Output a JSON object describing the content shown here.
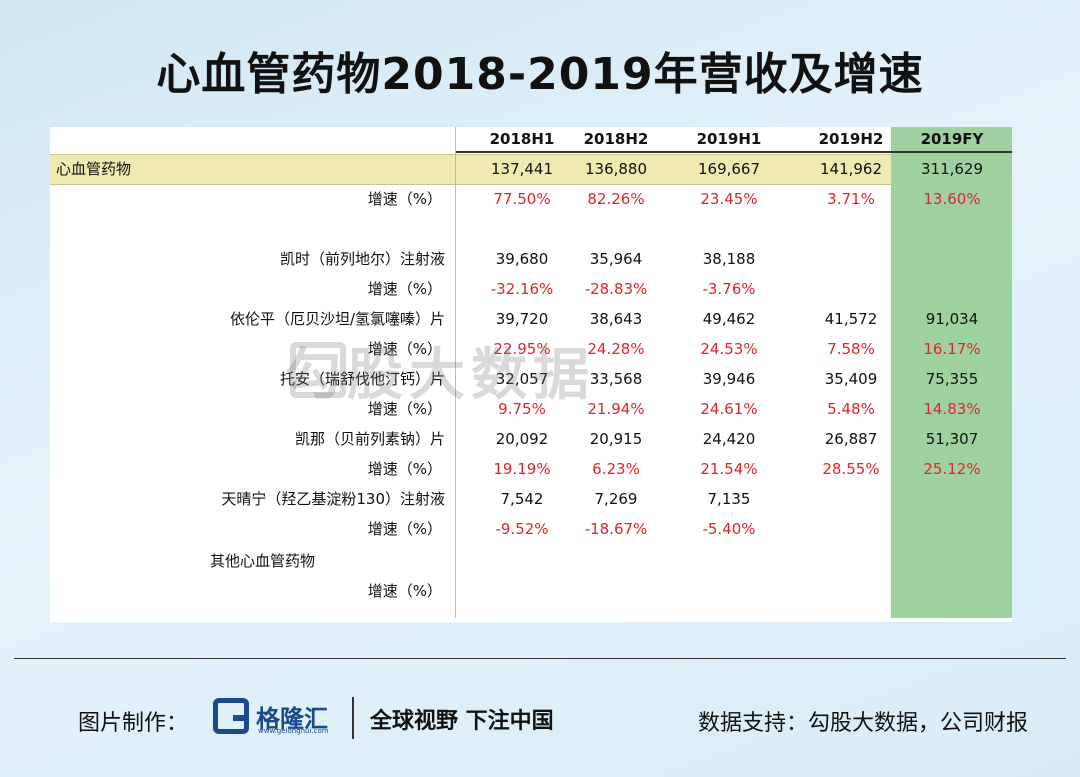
{
  "title": "心血管药物2018-2019年营收及增速",
  "watermark": "勾股大数据",
  "chart_data": {
    "type": "table",
    "columns": [
      "2018H1",
      "2018H2",
      "2019H1",
      "2019H2",
      "2019FY"
    ],
    "rows": [
      {
        "label": "心血管药物",
        "values": [
          "137,441",
          "136,880",
          "169,667",
          "141,962",
          "311,629"
        ],
        "growth_label": "增速（%）",
        "growth": [
          "77.50%",
          "82.26%",
          "23.45%",
          "3.71%",
          "13.60%"
        ]
      },
      {
        "label": "凯时（前列地尔）注射液",
        "values": [
          "39,680",
          "35,964",
          "38,188",
          "",
          ""
        ],
        "growth_label": "增速（%）",
        "growth": [
          "-32.16%",
          "-28.83%",
          "-3.76%",
          "",
          ""
        ]
      },
      {
        "label": "依伦平（厄贝沙坦/氢氯噻嗪）片",
        "values": [
          "39,720",
          "38,643",
          "49,462",
          "41,572",
          "91,034"
        ],
        "growth_label": "增速（%）",
        "growth": [
          "22.95%",
          "24.28%",
          "24.53%",
          "7.58%",
          "16.17%"
        ]
      },
      {
        "label": "托安（瑞舒伐他汀钙）片",
        "values": [
          "32,057",
          "33,568",
          "39,946",
          "35,409",
          "75,355"
        ],
        "growth_label": "增速（%）",
        "growth": [
          "9.75%",
          "21.94%",
          "24.61%",
          "5.48%",
          "14.83%"
        ]
      },
      {
        "label": "凯那（贝前列素钠）片",
        "values": [
          "20,092",
          "20,915",
          "24,420",
          "26,887",
          "51,307"
        ],
        "growth_label": "增速（%）",
        "growth": [
          "19.19%",
          "6.23%",
          "21.54%",
          "28.55%",
          "25.12%"
        ]
      },
      {
        "label": "天晴宁（羟乙基淀粉130）注射液",
        "values": [
          "7,542",
          "7,269",
          "7,135",
          "",
          ""
        ],
        "growth_label": "增速（%）",
        "growth": [
          "-9.52%",
          "-18.67%",
          "-5.40%",
          "",
          ""
        ]
      },
      {
        "label": "其他心血管药物",
        "values": [
          "",
          "",
          "",
          "",
          ""
        ],
        "growth_label": "增速（%）",
        "growth": [
          "",
          "",
          "",
          "",
          ""
        ]
      }
    ]
  },
  "footer": {
    "credit_label": "图片制作：",
    "logo_text": "格隆汇",
    "logo_url": "www.gelonghui.com",
    "slogan": "全球视野 下注中国",
    "source": "数据支持：勾股大数据，公司财报"
  }
}
